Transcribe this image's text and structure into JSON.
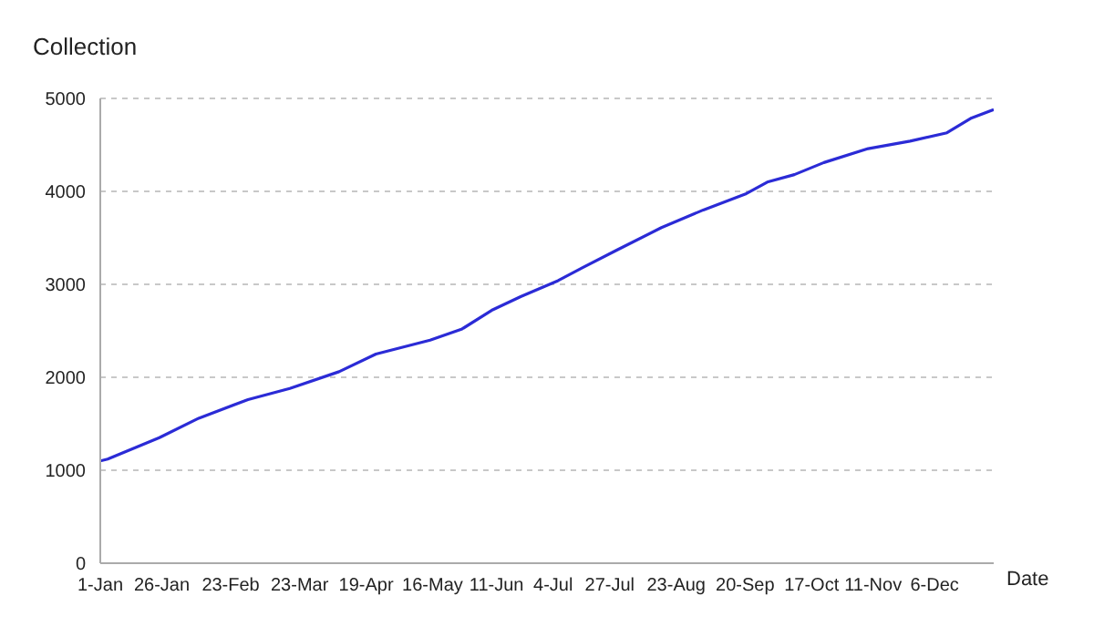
{
  "chart_data": {
    "type": "line",
    "title": "Collection",
    "xlabel": "Date",
    "x": [
      "--01-01",
      "--01-04",
      "--01-25",
      "--02-10",
      "--03-02",
      "--03-19",
      "--04-08",
      "--04-23",
      "--05-15",
      "--05-28",
      "--06-09",
      "--06-21",
      "--07-06",
      "--07-16",
      "--07-30",
      "--08-17",
      "--09-03",
      "--09-20",
      "--09-29",
      "--10-10",
      "--10-22",
      "--11-09",
      "--11-26",
      "--12-11",
      "--12-21",
      "--12-30"
    ],
    "series": [
      {
        "color": "#2b2bd6",
        "values": [
          1100,
          1120,
          1350,
          1560,
          1760,
          1880,
          2060,
          2250,
          2400,
          2520,
          2720,
          2870,
          3040,
          3180,
          3370,
          3610,
          3800,
          3970,
          4100,
          4180,
          4310,
          4460,
          4540,
          4630,
          4790,
          4880
        ]
      }
    ],
    "xlim": [
      "--01-01",
      "--12-30"
    ],
    "xticks": [
      {
        "value": "--01-01",
        "label": "1-Jan"
      },
      {
        "value": "--01-26",
        "label": "26-Jan"
      },
      {
        "value": "--02-23",
        "label": "23-Feb"
      },
      {
        "value": "--03-23",
        "label": "23-Mar"
      },
      {
        "value": "--04-19",
        "label": "19-Apr"
      },
      {
        "value": "--05-16",
        "label": "16-May"
      },
      {
        "value": "--06-11",
        "label": "11-Jun"
      },
      {
        "value": "--07-04",
        "label": "4-Jul"
      },
      {
        "value": "--07-27",
        "label": "27-Jul"
      },
      {
        "value": "--08-23",
        "label": "23-Aug"
      },
      {
        "value": "--09-20",
        "label": "20-Sep"
      },
      {
        "value": "--10-17",
        "label": "17-Oct"
      },
      {
        "value": "--11-11",
        "label": "11-Nov"
      },
      {
        "value": "--12-06",
        "label": "6-Dec"
      }
    ],
    "ylim": [
      0,
      5000
    ],
    "yticks": [
      0,
      1000,
      2000,
      3000,
      4000,
      5000
    ],
    "grid": "y",
    "marker": "none",
    "line_style": "solid"
  }
}
